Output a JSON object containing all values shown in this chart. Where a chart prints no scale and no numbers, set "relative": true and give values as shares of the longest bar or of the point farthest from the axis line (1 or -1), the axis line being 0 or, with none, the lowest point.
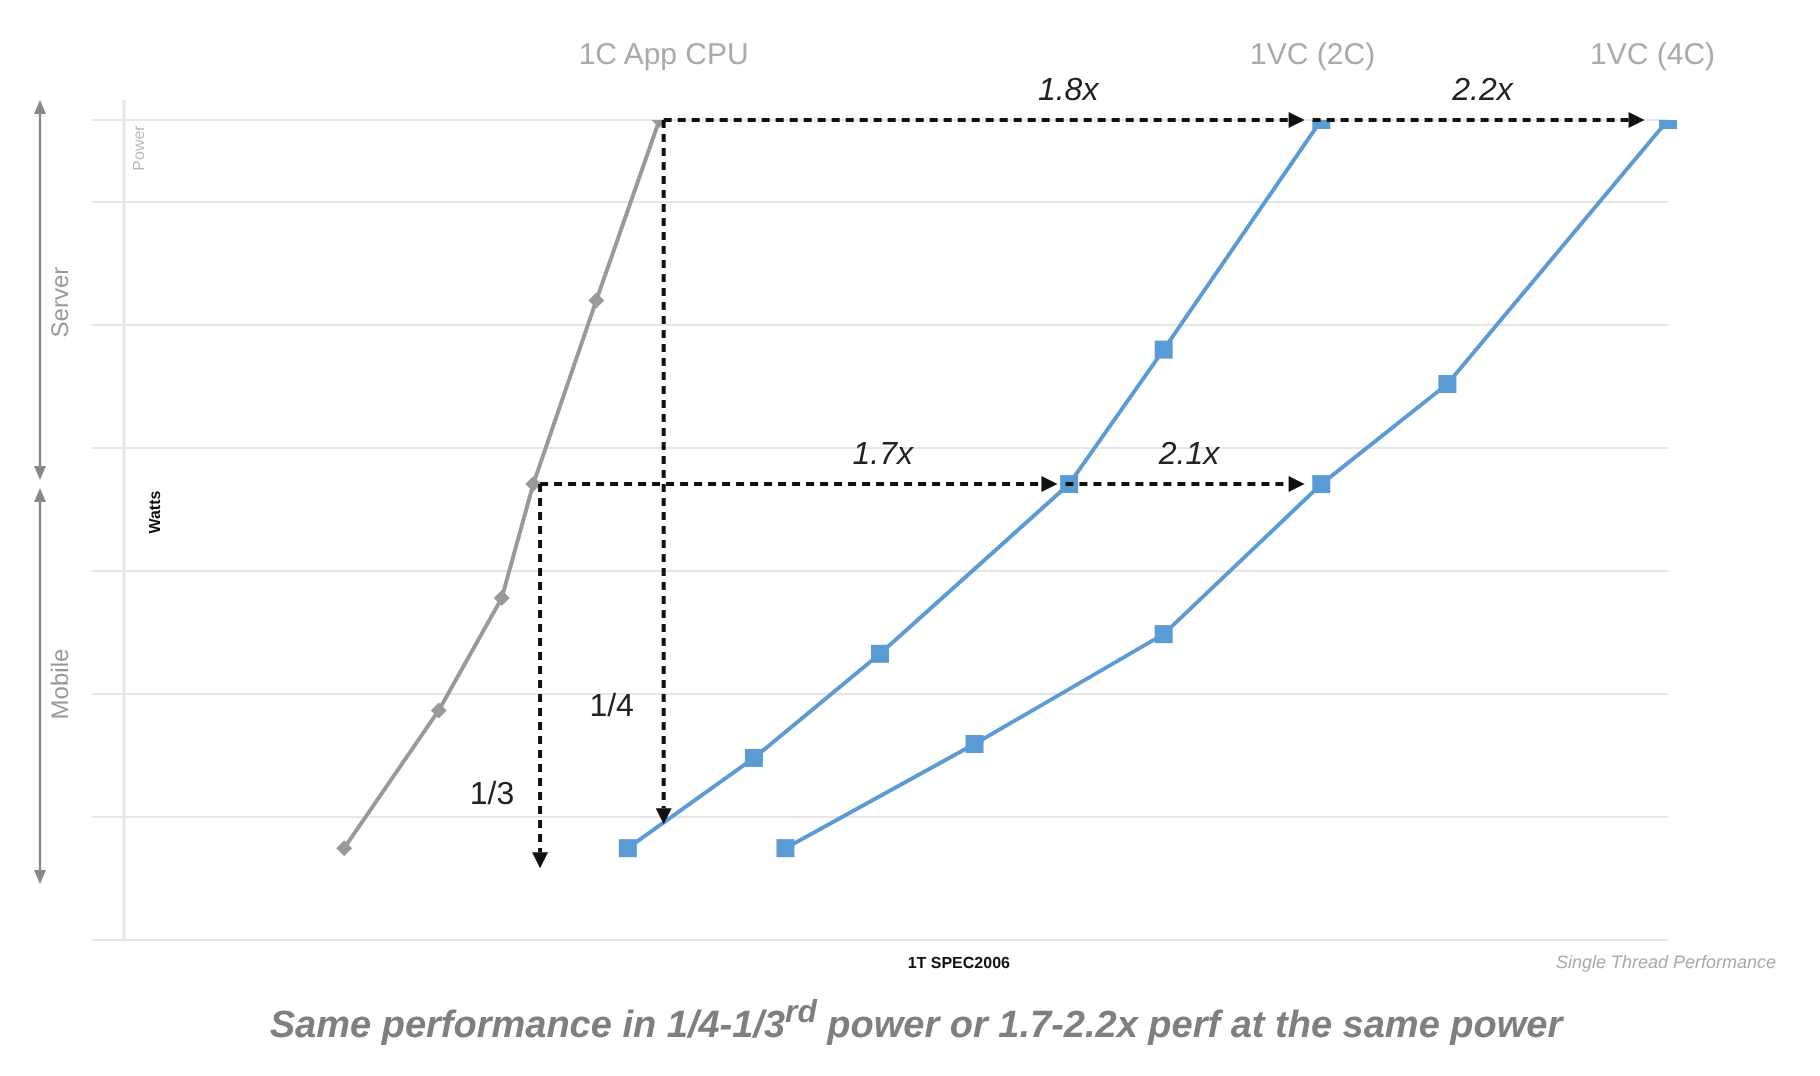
{
  "chart_data": {
    "type": "line",
    "relative": true,
    "title": "Same performance in 1/4-1/3$^{rd}$ power or 1.7-2.2x perf at the same power",
    "xlabel": "1T SPEC2006",
    "ylabel": "Watts",
    "grid": "y",
    "categories": [
      null,
      null,
      null,
      null,
      null,
      null,
      null,
      null,
      null,
      null,
      null,
      null,
      null,
      null,
      null,
      null,
      null,
      null,
      null,
      null,
      null,
      null,
      null,
      null,
      null,
      null,
      null,
      null,
      null,
      null,
      null,
      null,
      null,
      null,
      null,
      null,
      null,
      null,
      null,
      null,
      null,
      null,
      null,
      null,
      null,
      null,
      null,
      null,
      null,
      null,
      null
    ],
    "series": [
      {
        "name": "1C App CPU",
        "color": "#999999",
        "marker": "diamond",
        "values": [
          null,
          null,
          null,
          null,
          null,
          null,
          null,
          null,
          0.112,
          null,
          null,
          0.28,
          null,
          0.417,
          0.556,
          null,
          0.78,
          null,
          1,
          null,
          null,
          null,
          null,
          null,
          null,
          null,
          null,
          null,
          null,
          null,
          null,
          null,
          null,
          null,
          null,
          null,
          null,
          null,
          null,
          null,
          null,
          null,
          null,
          null,
          null,
          null,
          null,
          null,
          null,
          null,
          null
        ]
      },
      {
        "name": "1VC (2C)",
        "color": "#5b9bd5",
        "marker": "square",
        "values": [
          null,
          null,
          null,
          null,
          null,
          null,
          null,
          null,
          null,
          null,
          null,
          null,
          null,
          null,
          null,
          null,
          null,
          0.112,
          null,
          null,
          null,
          0.222,
          null,
          null,
          null,
          0.349,
          null,
          null,
          null,
          null,
          null,
          0.556,
          null,
          null,
          0.72,
          null,
          null,
          null,
          null,
          1,
          null,
          null,
          null,
          null,
          null,
          null,
          null,
          null,
          null,
          null,
          null
        ]
      },
      {
        "name": "1VC (4C)",
        "color": "#5b9bd5",
        "marker": "square",
        "values": [
          null,
          null,
          null,
          null,
          null,
          null,
          null,
          null,
          null,
          null,
          null,
          null,
          null,
          null,
          null,
          null,
          null,
          null,
          null,
          null,
          null,
          null,
          0.112,
          null,
          null,
          null,
          null,
          null,
          0.239,
          null,
          null,
          null,
          null,
          null,
          0.373,
          null,
          null,
          null,
          null,
          0.556,
          null,
          null,
          null,
          0.678,
          null,
          null,
          null,
          null,
          null,
          null,
          1
        ]
      }
    ],
    "annotations": [
      "1.8x",
      "2.2x",
      "1.7x",
      "2.1x",
      "1/4",
      "1/3",
      "Server",
      "Mobile",
      "Power",
      "Single Thread Performance"
    ]
  }
}
